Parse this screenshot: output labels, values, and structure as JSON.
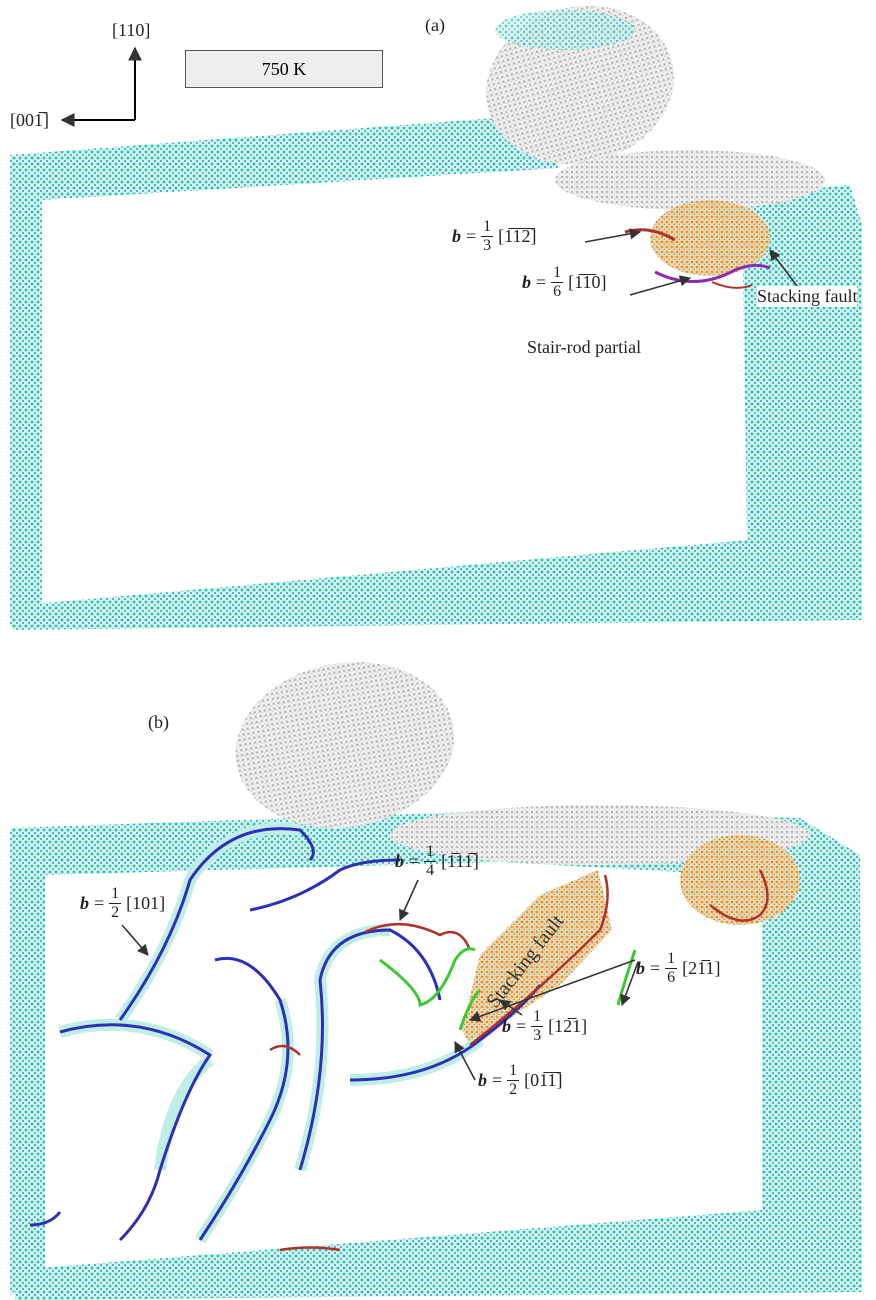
{
  "axes": {
    "up": "[110]",
    "left": "[001̅]"
  },
  "temperature": "750 K",
  "panel_a": {
    "label": "(a)",
    "annotations": [
      {
        "symbol": "b",
        "relation": "=",
        "numerator": "1",
        "denominator": "3",
        "direction": "[1̅1̅2̅]"
      },
      {
        "symbol": "b",
        "relation": "=",
        "numerator": "1",
        "denominator": "6",
        "direction": "[1̅1̅0]"
      }
    ],
    "stacking_fault": "Stacking fault",
    "stair_rod": "Stair-rod partial"
  },
  "panel_b": {
    "label": "(b)",
    "annotations": [
      {
        "symbol": "b",
        "relation": "=",
        "numerator": "1",
        "denominator": "4",
        "direction": "[1̅11̅]"
      },
      {
        "symbol": "b",
        "relation": "=",
        "numerator": "1",
        "denominator": "2",
        "direction": "[101]"
      },
      {
        "symbol": "b",
        "relation": "=",
        "numerator": "1",
        "denominator": "6",
        "direction": "[21̅1]"
      },
      {
        "symbol": "b",
        "relation": "=",
        "numerator": "1",
        "denominator": "3",
        "direction": "[12̅1]"
      },
      {
        "symbol": "b",
        "relation": "=",
        "numerator": "1",
        "denominator": "2",
        "direction": "[01̅1̅]"
      }
    ],
    "stacking_fault": "Stacking fault"
  }
}
